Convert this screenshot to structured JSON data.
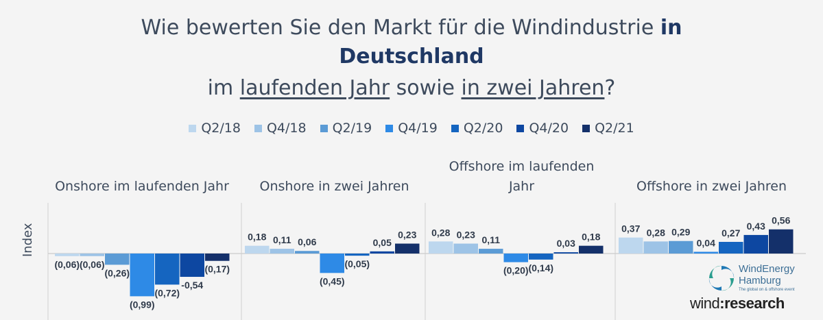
{
  "title": {
    "line1_a": "Wie bewerten Sie den Markt für die Windindustrie ",
    "line1_b": "in",
    "line2": "Deutschland",
    "line3_a": "im ",
    "line3_b": "laufenden Jahr",
    "line3_c": " sowie ",
    "line3_d": "in zwei Jahren",
    "line3_e": "?"
  },
  "ylabel": "Index",
  "logo": {
    "name": "WindEnergy",
    "city": "Hamburg",
    "tagline": "The global on & offshore event",
    "brand_a": "wind",
    "brand_b": "research"
  },
  "chart_data": {
    "type": "bar",
    "series": [
      {
        "name": "Q2/18",
        "color": "#bdd7ee"
      },
      {
        "name": "Q4/18",
        "color": "#9dc3e6"
      },
      {
        "name": "Q2/19",
        "color": "#5b9bd5"
      },
      {
        "name": "Q4/19",
        "color": "#2e8ae6"
      },
      {
        "name": "Q2/20",
        "color": "#1565c0"
      },
      {
        "name": "Q4/20",
        "color": "#0d47a1"
      },
      {
        "name": "Q2/21",
        "color": "#14306a"
      }
    ],
    "groups": [
      {
        "title": "Onshore im laufenden Jahr",
        "values": [
          -0.06,
          -0.06,
          -0.26,
          -0.99,
          -0.72,
          -0.54,
          -0.17
        ],
        "labels": [
          "(0,06)",
          "(0,06)",
          "(0,26)",
          "(0,99)",
          "(0,72)",
          "-0,54",
          "(0,17)"
        ]
      },
      {
        "title": "Onshore in zwei Jahren",
        "values": [
          0.18,
          0.11,
          0.06,
          -0.45,
          -0.05,
          0.05,
          0.23
        ],
        "labels": [
          "0,18",
          "0,11",
          "0,06",
          "(0,45)",
          "(0,05)",
          "0,05",
          "0,23"
        ]
      },
      {
        "title": "Offshore im laufenden Jahr",
        "title_line1": "Offshore im laufenden",
        "title_line2": "Jahr",
        "values": [
          0.28,
          0.23,
          0.11,
          -0.2,
          -0.14,
          0.03,
          0.18
        ],
        "labels": [
          "0,28",
          "0,23",
          "0,11",
          "(0,20)",
          "(0,14)",
          "0,03",
          "0,18"
        ]
      },
      {
        "title": "Offshore in zwei Jahren",
        "values": [
          0.37,
          0.28,
          0.29,
          0.04,
          0.27,
          0.43,
          0.56
        ],
        "labels": [
          "0,37",
          "0,28",
          "0,29",
          "0,04",
          "0,27",
          "0,43",
          "0,56"
        ]
      }
    ],
    "ylabel": "Index",
    "grid": false,
    "legend_position": "top"
  }
}
